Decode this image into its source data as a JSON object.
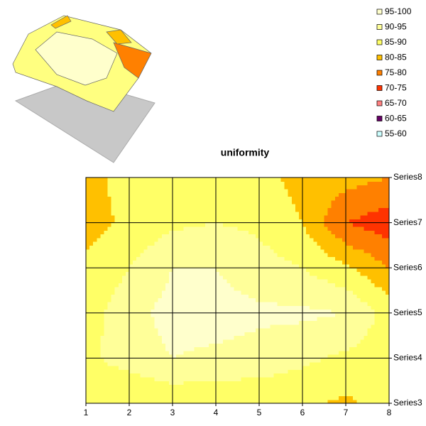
{
  "chart_data": {
    "type": "contour",
    "title": "uniformity",
    "x": [
      1,
      2,
      3,
      4,
      5,
      6,
      7,
      8
    ],
    "xlim": [
      1,
      8
    ],
    "series_names": [
      "Series3",
      "Series4",
      "Series5",
      "Series6",
      "Series7",
      "Series8"
    ],
    "z": [
      [
        87,
        85,
        86,
        86,
        86,
        86,
        84,
        87
      ],
      [
        89,
        92,
        95,
        94,
        93,
        91,
        89,
        87
      ],
      [
        88,
        93,
        97,
        97,
        96,
        96,
        95,
        88
      ],
      [
        86,
        90,
        95,
        95,
        92,
        90,
        86,
        80
      ],
      [
        83,
        86,
        89,
        90,
        89,
        85,
        75,
        72
      ],
      [
        82,
        88,
        88,
        88,
        87,
        83,
        82,
        80
      ]
    ],
    "bands": [
      {
        "label": "95-100",
        "min": 95,
        "max": 100,
        "color": "#ffffcc"
      },
      {
        "label": "90-95",
        "min": 90,
        "max": 95,
        "color": "#ffff99"
      },
      {
        "label": "85-90",
        "min": 85,
        "max": 90,
        "color": "#ffff66"
      },
      {
        "label": "80-85",
        "min": 80,
        "max": 85,
        "color": "#ffc000"
      },
      {
        "label": "75-80",
        "min": 75,
        "max": 80,
        "color": "#ff8000"
      },
      {
        "label": "70-75",
        "min": 70,
        "max": 75,
        "color": "#ff3300"
      },
      {
        "label": "65-70",
        "min": 65,
        "max": 70,
        "color": "#ff8080"
      },
      {
        "label": "60-65",
        "min": 60,
        "max": 65,
        "color": "#660066"
      },
      {
        "label": "55-60",
        "min": 55,
        "max": 60,
        "color": "#ccffff"
      }
    ]
  }
}
